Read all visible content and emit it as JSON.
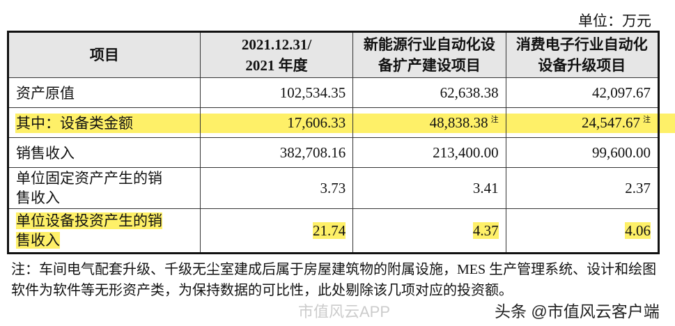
{
  "unit": "单位：万元",
  "headers": [
    "项目",
    "2021.12.31/\n2021 年度",
    "新能源行业自动化设备扩产建设项目",
    "消费电子行业自动化设备升级项目"
  ],
  "rows": [
    {
      "label": "资产原值",
      "values": [
        "102,534.35",
        "62,638.38",
        "42,097.67"
      ],
      "notes": [
        "",
        "",
        ""
      ]
    },
    {
      "label": "其中：设备类金额",
      "values": [
        "17,606.33",
        "48,838.38",
        "24,547.67"
      ],
      "notes": [
        "",
        "注",
        "注"
      ]
    },
    {
      "label": "销售收入",
      "values": [
        "382,708.16",
        "213,400.00",
        "99,600.00"
      ],
      "notes": [
        "",
        "",
        ""
      ]
    },
    {
      "label": "单位固定资产产生的销售收入",
      "values": [
        "3.73",
        "3.41",
        "2.37"
      ],
      "notes": [
        "",
        "",
        ""
      ]
    },
    {
      "label": "单位设备投资产生的销售收入",
      "values": [
        "21.74",
        "4.37",
        "4.06"
      ],
      "notes": [
        "",
        "",
        ""
      ]
    }
  ],
  "highlight_color": "#fef068",
  "footnote": "注：车间电气配套升级、千级无尘室建成后属于房屋建筑物的附属设施，MES 生产管理系统、设计和绘图软件为软件等无形资产类，为保持数据的可比性，此处剔除该几项对应的投资额。",
  "watermark": "市值风云APP",
  "credit": "头条 @市值风云客户端"
}
